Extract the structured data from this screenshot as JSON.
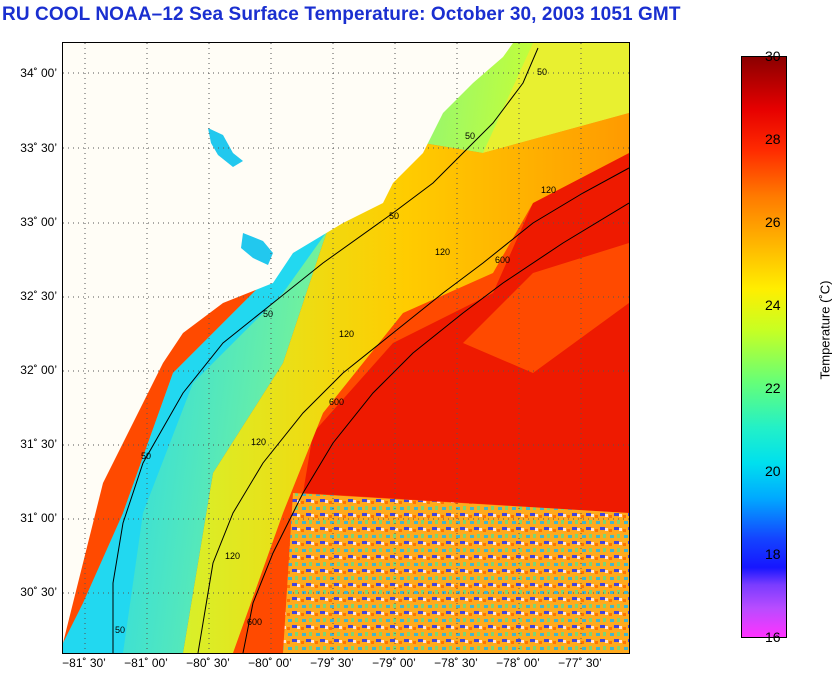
{
  "title": "RU COOL  NOAA–12  Sea Surface Temperature:  October 30, 2003 1051 GMT",
  "map": {
    "lat_labels": [
      "34˚ 00’",
      "33˚ 30’",
      "33˚ 00’",
      "32˚ 30’",
      "32˚ 00’",
      "31˚ 30’",
      "31˚ 00’",
      "30˚ 30’"
    ],
    "lon_labels": [
      "−81˚ 30’",
      "−81˚ 00’",
      "−80˚ 30’",
      "−80˚ 00’",
      "−79˚ 30’",
      "−79˚ 00’",
      "−78˚ 30’",
      "−78˚ 00’",
      "−77˚ 30’"
    ],
    "contour_labels": [
      "50",
      "120",
      "600"
    ],
    "colors": {
      "land": "#fffdf6",
      "coast_cold": "#22d8f0",
      "shelf": "#aaff44",
      "slope": "#ffdd00",
      "stream": "#ff4400",
      "core": "#ff2200"
    }
  },
  "colorbar": {
    "ticks": [
      "30",
      "28",
      "26",
      "24",
      "22",
      "20",
      "18",
      "16"
    ],
    "label": "Temperature (˚C)",
    "min": 16,
    "max": 30
  }
}
